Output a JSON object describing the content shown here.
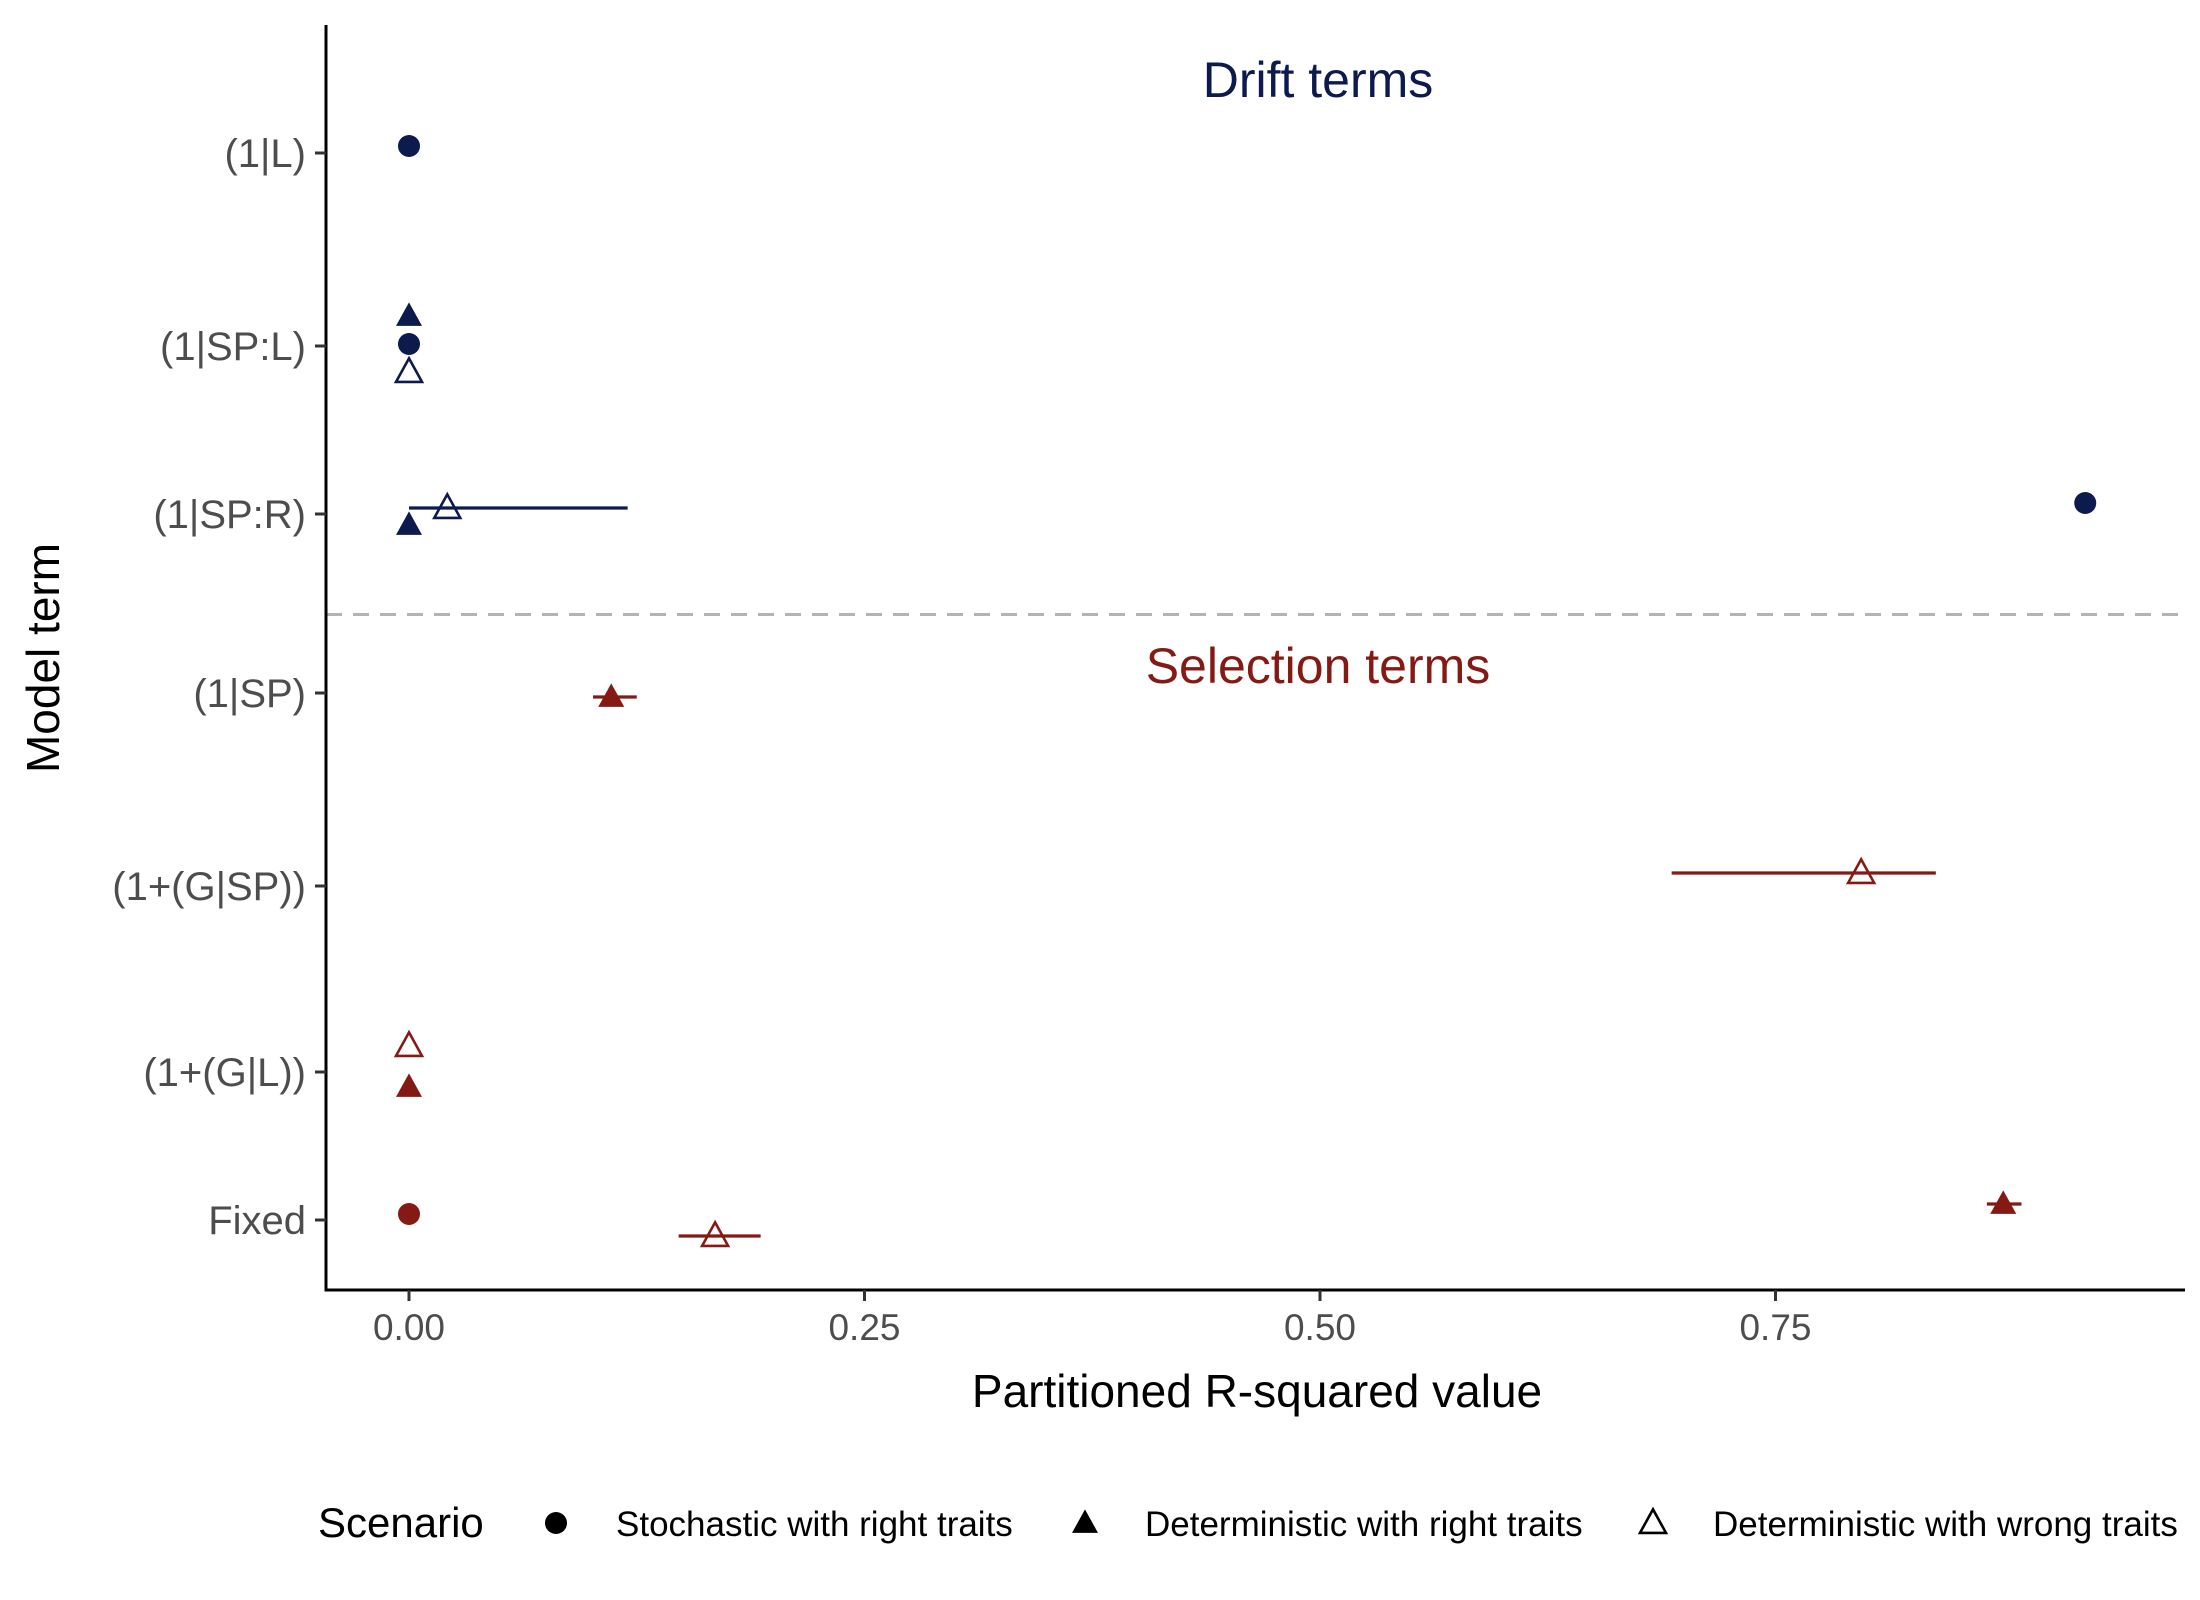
{
  "chart_data": {
    "type": "scatter",
    "orientation": "horizontal",
    "xlabel": "Partitioned R-squared value",
    "ylabel": "Model term",
    "xlim": [
      -0.045,
      0.972
    ],
    "x_ticks": [
      0.0,
      0.25,
      0.5,
      0.75
    ],
    "x_tick_labels": [
      "0.00",
      "0.25",
      "0.50",
      "0.75"
    ],
    "categories": [
      "(1|L)",
      "(1|SP:L)",
      "(1|SP:R)",
      "(1|SP)",
      "(1+(G|SP))",
      "(1+(G|L))",
      "Fixed"
    ],
    "grid": false,
    "groups": [
      {
        "name": "Drift terms",
        "color": "#0c1a4e",
        "categories": [
          "(1|L)",
          "(1|SP:L)",
          "(1|SP:R)"
        ]
      },
      {
        "name": "Selection terms",
        "color": "#851a14",
        "categories": [
          "(1|SP)",
          "(1+(G|SP))",
          "(1+(G|L))",
          "Fixed"
        ]
      }
    ],
    "separator": {
      "between": [
        "(1|SP:R)",
        "(1|SP)"
      ],
      "style": "dashed",
      "color": "#b3b3b3"
    },
    "legend": {
      "title": "Scenario",
      "position": "bottom"
    },
    "series": [
      {
        "name": "Stochastic with right traits",
        "shape": "filled-circle",
        "points": [
          {
            "category": "(1|L)",
            "x": 0.0
          },
          {
            "category": "(1|SP:L)",
            "x": 0.0
          },
          {
            "category": "(1|SP:R)",
            "x": 0.92
          },
          {
            "category": "Fixed",
            "x": 0.0
          }
        ]
      },
      {
        "name": "Deterministic with right traits",
        "shape": "filled-triangle",
        "points": [
          {
            "category": "(1|SP:L)",
            "x": 0.0
          },
          {
            "category": "(1|SP:R)",
            "x": 0.0
          },
          {
            "category": "(1|SP)",
            "x": 0.111,
            "xmin": 0.101,
            "xmax": 0.125
          },
          {
            "category": "(1+(G|L))",
            "x": 0.0
          },
          {
            "category": "Fixed",
            "x": 0.875,
            "xmin": 0.866,
            "xmax": 0.885
          }
        ]
      },
      {
        "name": "Deterministic with wrong traits",
        "shape": "open-triangle",
        "points": [
          {
            "category": "(1|SP:L)",
            "x": 0.0
          },
          {
            "category": "(1|SP:R)",
            "x": 0.021,
            "xmin": 0.0,
            "xmax": 0.12
          },
          {
            "category": "(1+(G|SP))",
            "x": 0.797,
            "xmin": 0.693,
            "xmax": 0.838
          },
          {
            "category": "(1+(G|L))",
            "x": 0.0
          },
          {
            "category": "Fixed",
            "x": 0.168,
            "xmin": 0.148,
            "xmax": 0.193
          }
        ]
      }
    ]
  }
}
